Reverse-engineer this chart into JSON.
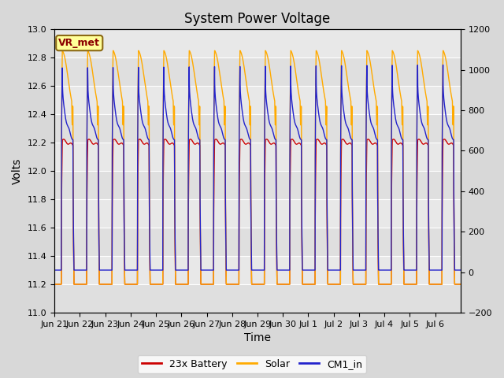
{
  "title": "System Power Voltage",
  "xlabel": "Time",
  "ylabel_left": "Volts",
  "ylim_left": [
    11.0,
    13.0
  ],
  "ylim_right": [
    -200,
    1200
  ],
  "x_tick_labels": [
    "Jun 21",
    "Jun 22",
    "Jun 23",
    "Jun 24",
    "Jun 25",
    "Jun 26",
    "Jun 27",
    "Jun 28",
    "Jun 29",
    "Jun 30",
    "Jul 1",
    "Jul 2",
    "Jul 3",
    "Jul 4",
    "Jul 5",
    "Jul 6"
  ],
  "legend_labels": [
    "23x Battery",
    "Solar",
    "CM1_in"
  ],
  "legend_colors": [
    "#cc0000",
    "#ffaa00",
    "#2222cc"
  ],
  "vr_met_label": "VR_met",
  "bg_color": "#d8d8d8",
  "plot_bg_color": "#e8e8e8",
  "grid_color": "#ffffff",
  "title_fontsize": 12,
  "axis_fontsize": 10,
  "tick_fontsize": 8,
  "legend_fontsize": 9,
  "left_yticks": [
    11.0,
    11.2,
    11.4,
    11.6,
    11.8,
    12.0,
    12.2,
    12.4,
    12.6,
    12.8,
    13.0
  ],
  "right_yticks": [
    -200,
    0,
    200,
    400,
    600,
    800,
    1000,
    1200
  ]
}
